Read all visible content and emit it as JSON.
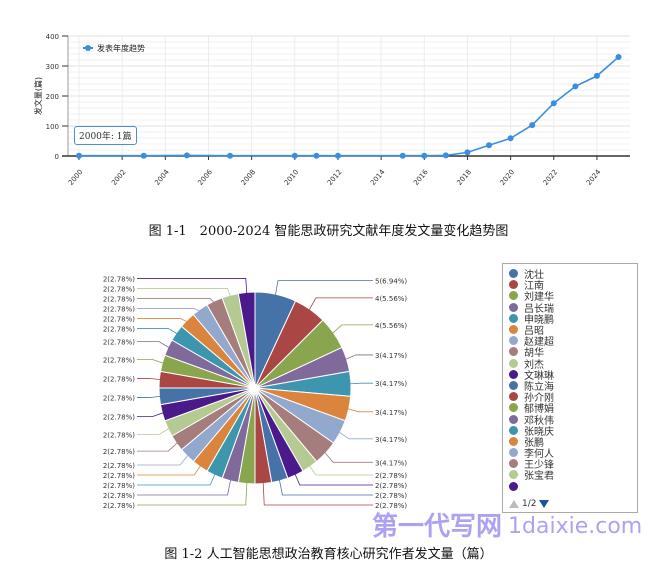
{
  "chart_data": [
    {
      "type": "line",
      "title": "",
      "ylabel": "发文量(篇)",
      "xlabel": "",
      "ylim": [
        0,
        400
      ],
      "yticks": [
        0,
        100,
        200,
        300,
        400
      ],
      "xticks": [
        2000,
        2002,
        2004,
        2006,
        2008,
        2010,
        2012,
        2014,
        2016,
        2018,
        2020,
        2022,
        2024
      ],
      "grid": true,
      "legend_position": "top-left",
      "series": [
        {
          "name": "发表年度趋势",
          "color": "#3a8ee0",
          "x": [
            2000,
            2003,
            2005,
            2007,
            2010,
            2011,
            2012,
            2015,
            2016,
            2017,
            2018,
            2019,
            2020,
            2021,
            2022,
            2023,
            2024,
            2025
          ],
          "y": [
            1,
            1,
            2,
            1,
            1,
            1,
            1,
            1,
            1,
            2,
            12,
            36,
            59,
            103,
            176,
            232,
            267,
            330
          ]
        }
      ],
      "tooltip": "2000年: 1篇"
    },
    {
      "type": "pie",
      "title": "",
      "values": [
        5,
        4,
        4,
        3,
        3,
        3,
        3,
        3,
        2,
        2,
        2,
        2,
        2,
        2,
        2,
        2,
        2,
        2,
        2,
        2,
        2,
        2,
        2,
        2,
        2,
        2,
        2,
        2,
        2,
        2
      ],
      "labels": [
        "5(6.94%)",
        "4(5.56%)",
        "4(5.56%)",
        "3(4.17%)",
        "3(4.17%)",
        "3(4.17%)",
        "3(4.17%)",
        "3(4.17%)",
        "2(2.78%)",
        "2(2.78%)",
        "2(2.78%)",
        "2(2.78%)",
        "2(2.78%)",
        "2(2.78%)",
        "2(2.78%)",
        "2(2.78%)",
        "2(2.78%)",
        "2(2.78%)",
        "2(2.78%)",
        "2(2.78%)",
        "2(2.78%)",
        "2(2.78%)",
        "2(2.78%)",
        "2(2.78%)",
        "2(2.78%)",
        "2(2.78%)",
        "2(2.78%)",
        "2(2.78%)",
        "2(2.78%)",
        "2(2.78%)"
      ],
      "colors": [
        "#4572A7",
        "#AA4643",
        "#89A54E",
        "#80699B",
        "#3D96AE",
        "#DB843D",
        "#92A8CD",
        "#A47D7C",
        "#B5CA92",
        "#4B1A8A"
      ],
      "legend_position": "right",
      "legend": [
        "沈壮",
        "江南",
        "刘建华",
        "吕长瑞",
        "申晓鹏",
        "吕昭",
        "赵建超",
        "胡华",
        "刘杰",
        "文琳琳",
        "陈立海",
        "孙介刚",
        "郁博娟",
        "邓秋伟",
        "张晓庆",
        "张鹏",
        "李何人",
        "王少锋",
        "张宝君",
        ""
      ],
      "legend_page": "1/2"
    }
  ],
  "captions": {
    "fig1": "图 1-1　2000-2024 智能思政研究文献年度发文量变化趋势图",
    "fig2": "图 1-2 人工智能思想政治教育核心研究作者发文量（篇）"
  },
  "watermark": {
    "line1": "第一代写网",
    "line2": "1daixie.com"
  }
}
